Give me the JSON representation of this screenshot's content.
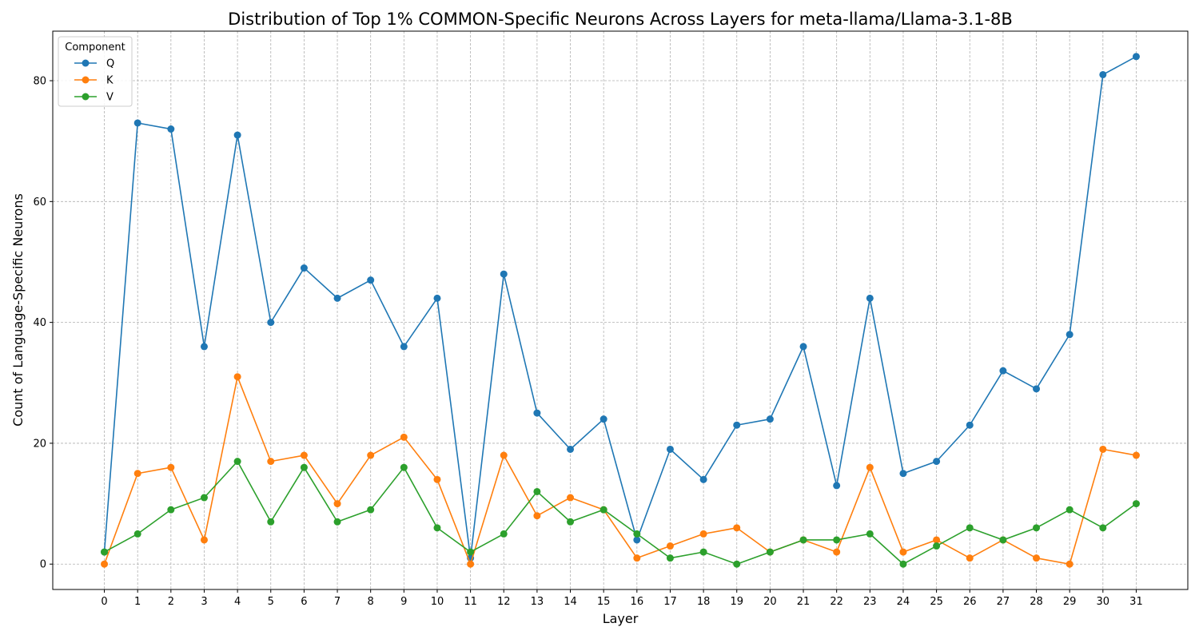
{
  "chart_data": {
    "type": "line",
    "title": "Distribution of Top 1% COMMON-Specific Neurons Across Layers for meta-llama/Llama-3.1-8B",
    "xlabel": "Layer",
    "ylabel": "Count of Language-Specific Neurons",
    "x": [
      0,
      1,
      2,
      3,
      4,
      5,
      6,
      7,
      8,
      9,
      10,
      11,
      12,
      13,
      14,
      15,
      16,
      17,
      18,
      19,
      20,
      21,
      22,
      23,
      24,
      25,
      26,
      27,
      28,
      29,
      30,
      31
    ],
    "xlim": [
      -1.55,
      32.55
    ],
    "ylim": [
      -4.2,
      88.2
    ],
    "yticks": [
      0,
      20,
      40,
      60,
      80
    ],
    "grid": true,
    "legend": {
      "title": "Component",
      "placement": "top-left"
    },
    "series": [
      {
        "name": "Q",
        "color": "#1f77b4",
        "values": [
          2,
          73,
          72,
          36,
          71,
          40,
          49,
          44,
          47,
          36,
          44,
          1,
          48,
          25,
          19,
          24,
          4,
          19,
          14,
          23,
          24,
          36,
          13,
          44,
          15,
          17,
          23,
          32,
          29,
          38,
          81,
          84
        ]
      },
      {
        "name": "K",
        "color": "#ff7f0e",
        "values": [
          0,
          15,
          16,
          4,
          31,
          17,
          18,
          10,
          18,
          21,
          14,
          0,
          18,
          8,
          11,
          9,
          1,
          3,
          5,
          6,
          2,
          4,
          2,
          16,
          2,
          4,
          1,
          4,
          1,
          0,
          19,
          18
        ]
      },
      {
        "name": "V",
        "color": "#2ca02c",
        "values": [
          2,
          5,
          9,
          11,
          17,
          7,
          16,
          7,
          9,
          16,
          6,
          2,
          5,
          12,
          7,
          9,
          5,
          1,
          2,
          0,
          2,
          4,
          4,
          5,
          0,
          3,
          6,
          4,
          6,
          9,
          6,
          10
        ]
      }
    ]
  }
}
